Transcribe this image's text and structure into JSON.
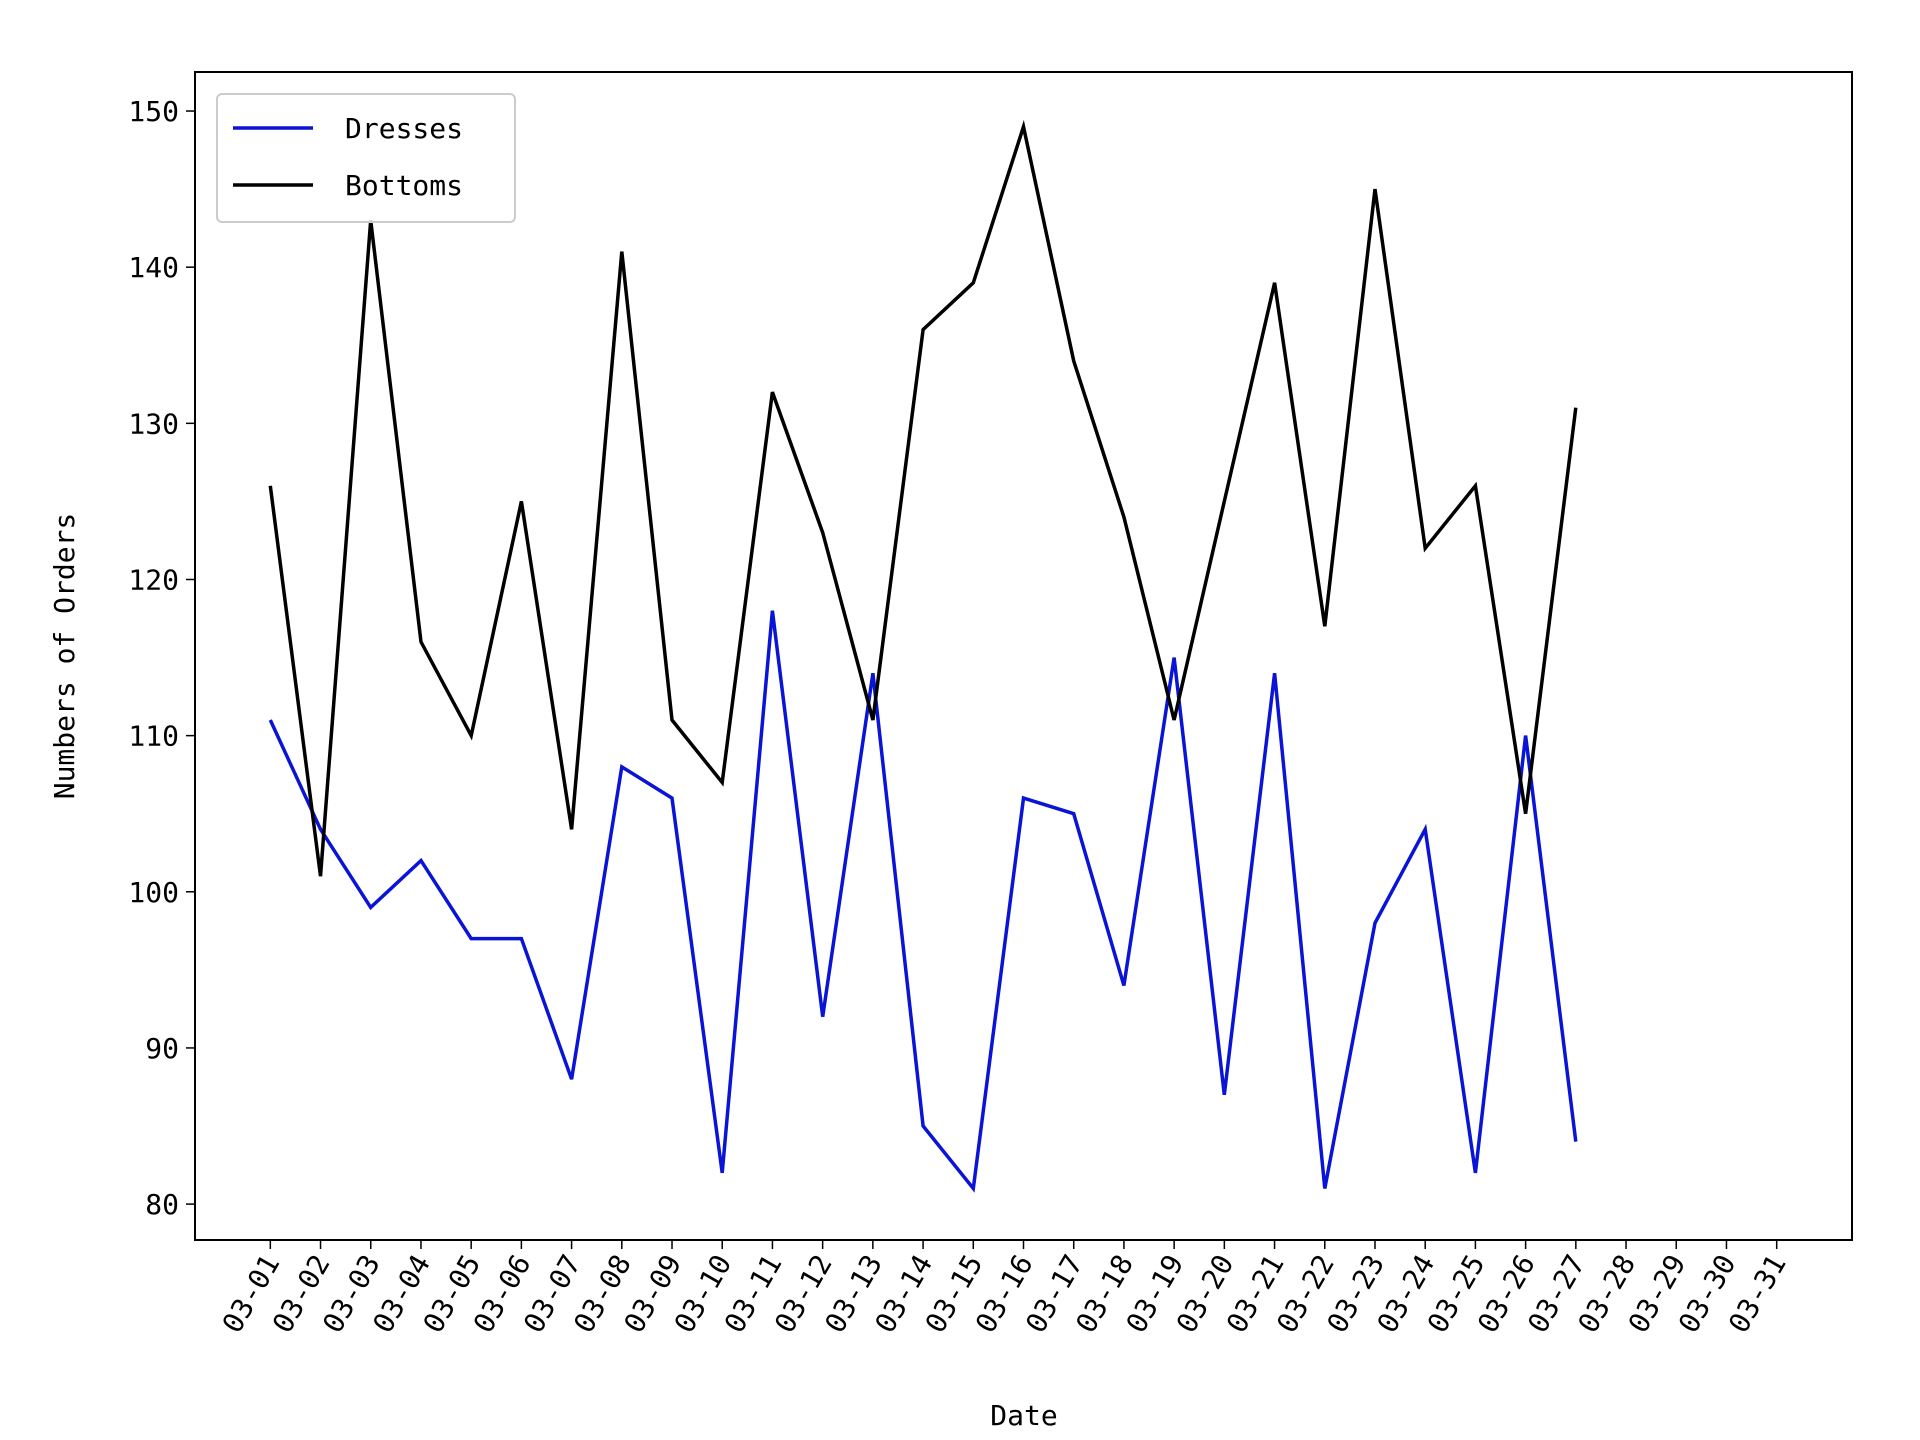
{
  "chart_data": {
    "type": "line",
    "xlabel": "Date",
    "ylabel": "Numbers of Orders",
    "categories": [
      "03-01",
      "03-02",
      "03-03",
      "03-04",
      "03-05",
      "03-06",
      "03-07",
      "03-08",
      "03-09",
      "03-10",
      "03-11",
      "03-12",
      "03-13",
      "03-14",
      "03-15",
      "03-16",
      "03-17",
      "03-18",
      "03-19",
      "03-20",
      "03-21",
      "03-22",
      "03-23",
      "03-24",
      "03-25",
      "03-26",
      "03-27",
      "03-28",
      "03-29",
      "03-30",
      "03-31"
    ],
    "series": [
      {
        "name": "Dresses",
        "color": "#0a14d6",
        "values": [
          111,
          104,
          99,
          102,
          97,
          97,
          88,
          108,
          106,
          82,
          118,
          92,
          114,
          85,
          81,
          106,
          105,
          94,
          115,
          87,
          114,
          81,
          98,
          104,
          82,
          110,
          84,
          null,
          null,
          null,
          null
        ]
      },
      {
        "name": "Bottoms",
        "color": "#000000",
        "values": [
          126,
          101,
          143,
          116,
          110,
          125,
          104,
          141,
          111,
          107,
          132,
          123,
          111,
          136,
          139,
          149,
          134,
          124,
          111,
          125,
          139,
          117,
          145,
          122,
          126,
          105,
          131,
          null,
          null,
          null,
          null
        ]
      }
    ],
    "ylim": [
      77.7,
      152.5
    ],
    "yticks": [
      80,
      90,
      100,
      110,
      120,
      130,
      140,
      150
    ],
    "grid": false,
    "legend": "upper left"
  }
}
